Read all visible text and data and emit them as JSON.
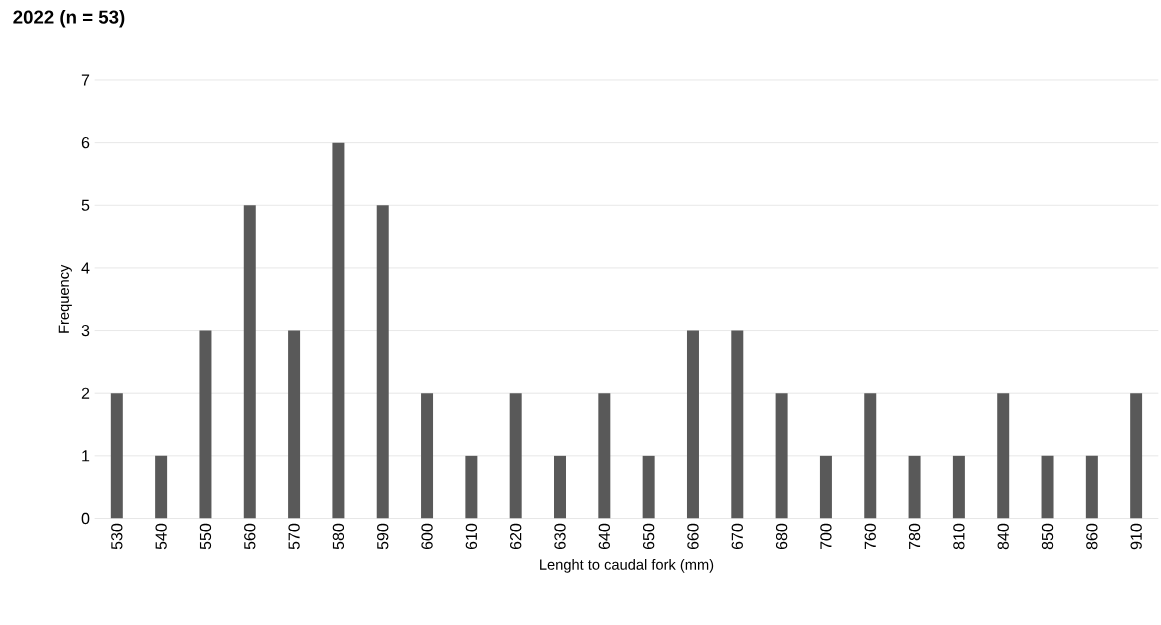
{
  "chart_data": {
    "type": "bar",
    "title": "2022 (n = 53)",
    "xlabel": "Lenght to caudal fork (mm)",
    "ylabel": "Frequency",
    "categories": [
      "530",
      "540",
      "550",
      "560",
      "570",
      "580",
      "590",
      "600",
      "610",
      "620",
      "630",
      "640",
      "650",
      "660",
      "670",
      "680",
      "700",
      "760",
      "780",
      "810",
      "840",
      "850",
      "860",
      "910"
    ],
    "values": [
      2,
      1,
      3,
      5,
      3,
      6,
      5,
      2,
      1,
      2,
      1,
      2,
      1,
      3,
      3,
      2,
      1,
      2,
      1,
      1,
      2,
      1,
      1,
      2
    ],
    "color": "#595959",
    "ylim": [
      0,
      7
    ],
    "yticks": [
      0,
      1,
      2,
      3,
      4,
      5,
      6,
      7
    ],
    "grid": "y"
  }
}
